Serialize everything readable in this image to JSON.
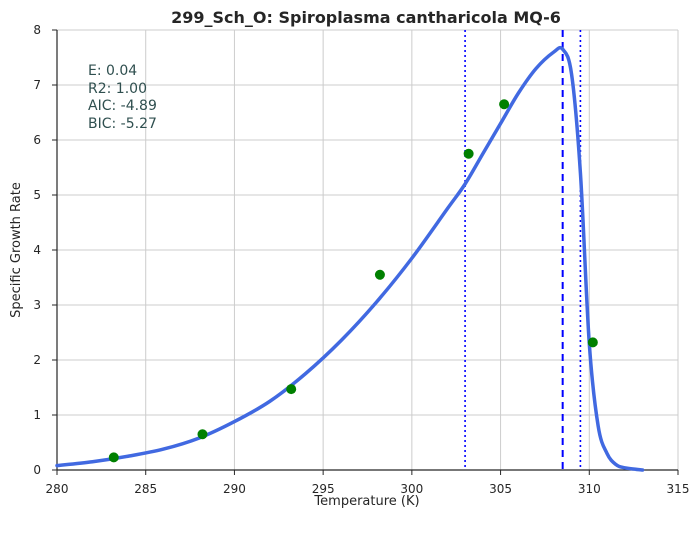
{
  "chart_data": {
    "type": "line",
    "title": "299_Sch_O: Spiroplasma cantharicola MQ-6",
    "xlabel": "Temperature (K)",
    "ylabel": "Specific Growth Rate",
    "xlim": [
      280,
      315
    ],
    "ylim": [
      0,
      8
    ],
    "x_ticks": [
      280,
      285,
      290,
      295,
      300,
      305,
      310,
      315
    ],
    "y_ticks": [
      0,
      1,
      2,
      3,
      4,
      5,
      6,
      7,
      8
    ],
    "grid": true,
    "series": [
      {
        "kind": "fitted-curve",
        "color": "#4169e1",
        "x": [
          280,
          282,
          284,
          286,
          288,
          290,
          292,
          294,
          296,
          298,
          300,
          302,
          303,
          304,
          305,
          306,
          307,
          308,
          308.5,
          309,
          309.5,
          310,
          310.5,
          311,
          311.5,
          312,
          313
        ],
        "y": [
          0.08,
          0.15,
          0.25,
          0.38,
          0.58,
          0.88,
          1.25,
          1.75,
          2.35,
          3.05,
          3.85,
          4.75,
          5.2,
          5.75,
          6.3,
          6.85,
          7.3,
          7.6,
          7.65,
          7.2,
          5.4,
          2.3,
          0.8,
          0.3,
          0.1,
          0.04,
          0.0
        ]
      },
      {
        "kind": "observations",
        "color": "#008000",
        "x": [
          283.2,
          288.2,
          293.2,
          298.2,
          303.2,
          305.2,
          310.2
        ],
        "y": [
          0.23,
          0.65,
          1.47,
          3.55,
          5.75,
          6.65,
          2.32
        ]
      }
    ],
    "vlines": [
      {
        "x": 303.0,
        "style": "dotted",
        "color": "#0000ff"
      },
      {
        "x": 308.5,
        "style": "dashed",
        "color": "#0000ff"
      },
      {
        "x": 309.5,
        "style": "dotted",
        "color": "#0000ff"
      }
    ],
    "annotations": [
      "E:  0.04",
      "R2:  1.00",
      "AIC: -4.89",
      "BIC: -5.27"
    ]
  }
}
